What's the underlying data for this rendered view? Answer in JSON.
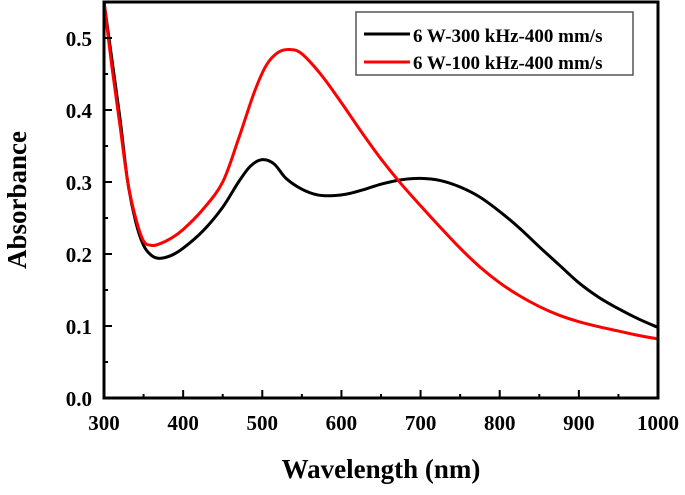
{
  "chart_data": {
    "type": "line",
    "title": "",
    "xlabel": "Wavelength (nm)",
    "ylabel": "Absorbance",
    "xlim": [
      300,
      1000
    ],
    "ylim": [
      0,
      0.55
    ],
    "xticks": [
      300,
      400,
      500,
      600,
      700,
      800,
      900,
      1000
    ],
    "yticks": [
      0.0,
      0.1,
      0.2,
      0.3,
      0.4,
      0.5
    ],
    "ytick_labels": [
      "0.0",
      "0.1",
      "0.2",
      "0.3",
      "0.4",
      "0.5"
    ],
    "grid": false,
    "legend_position": "top-right",
    "series": [
      {
        "name": "6 W-300 kHz-400 mm/s",
        "color": "#000000",
        "x": [
          300,
          310,
          320,
          330,
          340,
          350,
          360,
          370,
          385,
          400,
          425,
          450,
          470,
          485,
          500,
          515,
          530,
          550,
          570,
          590,
          610,
          630,
          650,
          675,
          700,
          725,
          750,
          775,
          800,
          825,
          850,
          875,
          900,
          925,
          950,
          975,
          1000
        ],
        "y": [
          0.55,
          0.47,
          0.39,
          0.3,
          0.245,
          0.212,
          0.198,
          0.194,
          0.198,
          0.208,
          0.232,
          0.265,
          0.3,
          0.322,
          0.331,
          0.325,
          0.305,
          0.29,
          0.282,
          0.281,
          0.284,
          0.29,
          0.297,
          0.303,
          0.305,
          0.302,
          0.293,
          0.279,
          0.259,
          0.236,
          0.21,
          0.185,
          0.16,
          0.14,
          0.124,
          0.11,
          0.098
        ]
      },
      {
        "name": "6 W-100 kHz-400 mm/s",
        "color": "#ff0000",
        "x": [
          300,
          310,
          320,
          330,
          340,
          350,
          360,
          370,
          385,
          400,
          425,
          450,
          470,
          490,
          505,
          520,
          535,
          550,
          575,
          600,
          625,
          650,
          675,
          700,
          725,
          750,
          775,
          800,
          825,
          850,
          875,
          900,
          925,
          950,
          975,
          1000
        ],
        "y": [
          0.55,
          0.46,
          0.38,
          0.3,
          0.25,
          0.218,
          0.212,
          0.214,
          0.222,
          0.234,
          0.262,
          0.3,
          0.36,
          0.425,
          0.462,
          0.48,
          0.484,
          0.478,
          0.448,
          0.41,
          0.37,
          0.332,
          0.298,
          0.267,
          0.237,
          0.208,
          0.182,
          0.16,
          0.142,
          0.127,
          0.115,
          0.106,
          0.099,
          0.093,
          0.087,
          0.082
        ]
      }
    ]
  }
}
